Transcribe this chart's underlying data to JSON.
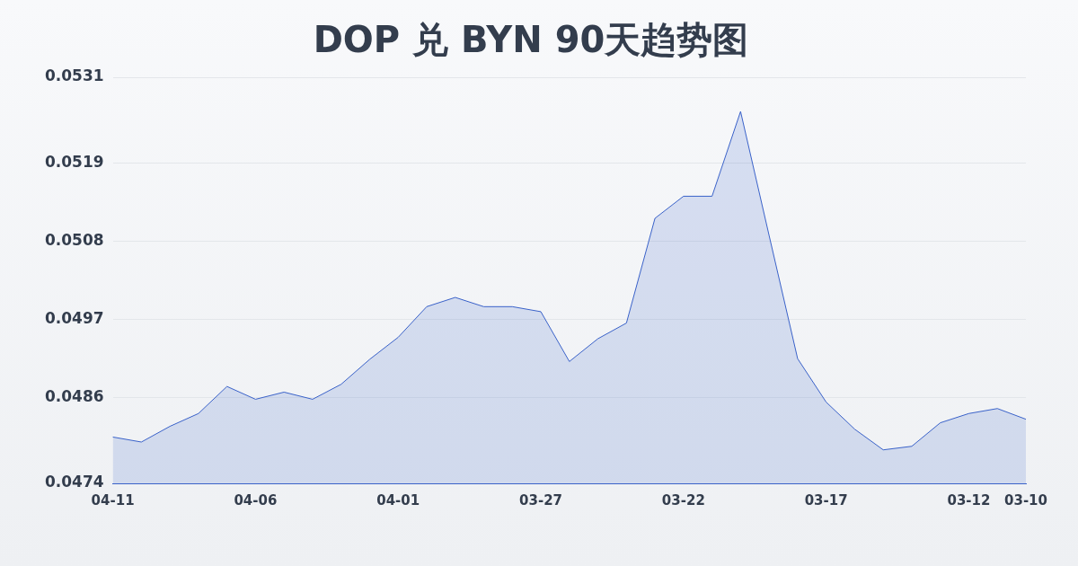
{
  "chart_data": {
    "type": "area",
    "title": "DOP 兑 BYN 90天趋势图",
    "categories": [
      "04-11",
      null,
      null,
      null,
      null,
      "04-06",
      null,
      null,
      null,
      null,
      "04-01",
      null,
      null,
      null,
      null,
      "03-27",
      null,
      null,
      null,
      null,
      "03-22",
      null,
      null,
      null,
      null,
      "03-17",
      null,
      null,
      null,
      null,
      "03-12",
      null,
      "03-10"
    ],
    "series": [
      {
        "color": "#3a62c9",
        "values": [
          0.04805,
          0.04798,
          0.0482,
          0.04838,
          0.04876,
          0.04858,
          0.04868,
          0.04858,
          0.04879,
          0.04914,
          0.04945,
          0.04988,
          0.05001,
          0.04988,
          0.04988,
          0.04981,
          0.04911,
          0.04943,
          0.04965,
          0.05112,
          0.05143,
          0.05143,
          0.05262,
          0.05088,
          0.04915,
          0.04854,
          0.04816,
          0.04787,
          0.04792,
          0.04825,
          0.04838,
          0.04845,
          0.0483
        ]
      }
    ],
    "ylim": [
      0.0474,
      0.0531
    ],
    "yticks": [
      0.0474,
      0.0486,
      0.0497,
      0.0508,
      0.0519,
      0.0531
    ],
    "grid": "y",
    "legend": false,
    "marker": "none",
    "line_style": "solid"
  }
}
